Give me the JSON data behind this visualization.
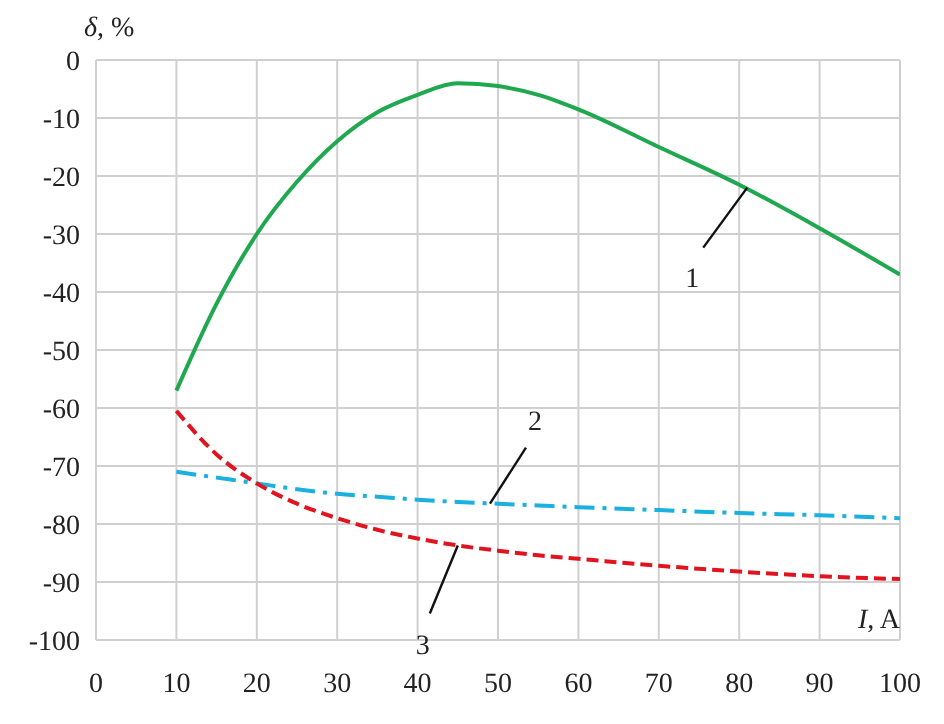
{
  "chart_data": {
    "type": "line",
    "xlabel": "I, A",
    "ylabel": "δ, %",
    "x": [
      10,
      15,
      20,
      25,
      30,
      35,
      40,
      45,
      50,
      55,
      60,
      70,
      80,
      90,
      100
    ],
    "series": [
      {
        "color": "#1fa84f",
        "line_style": "solid",
        "values": [
          -57,
          -42,
          -30,
          -21,
          -14,
          -9,
          -6,
          -4,
          -4.5,
          -6,
          -8.5,
          -15,
          -21.5,
          -29,
          -37
        ]
      },
      {
        "color": "#1ab0e0",
        "line_style": "dashdot",
        "values": [
          -71,
          -72,
          -73,
          -74,
          -74.8,
          -75.3,
          -75.8,
          -76.2,
          -76.5,
          -76.8,
          -77.1,
          -77.6,
          -78.1,
          -78.5,
          -79
        ]
      },
      {
        "color": "#e0141e",
        "line_style": "dashed",
        "values": [
          -60.5,
          -68,
          -73,
          -76.5,
          -79,
          -81,
          -82.5,
          -83.7,
          -84.6,
          -85.4,
          -86,
          -87.2,
          -88.2,
          -89,
          -89.5
        ]
      }
    ],
    "annotations": [
      {
        "text": "1",
        "x": 81,
        "y": -22
      },
      {
        "text": "2",
        "x": 49,
        "y": -76.5
      },
      {
        "text": "3",
        "x": 45,
        "y": -83.7
      }
    ],
    "xlim": [
      0,
      100
    ],
    "xticks": [
      0,
      10,
      20,
      30,
      40,
      50,
      60,
      70,
      80,
      90,
      100
    ],
    "ylim": [
      -100,
      0
    ],
    "yticks": [
      -100,
      -90,
      -80,
      -70,
      -60,
      -50,
      -40,
      -30,
      -20,
      -10,
      0
    ],
    "grid": true,
    "marker": "none"
  }
}
